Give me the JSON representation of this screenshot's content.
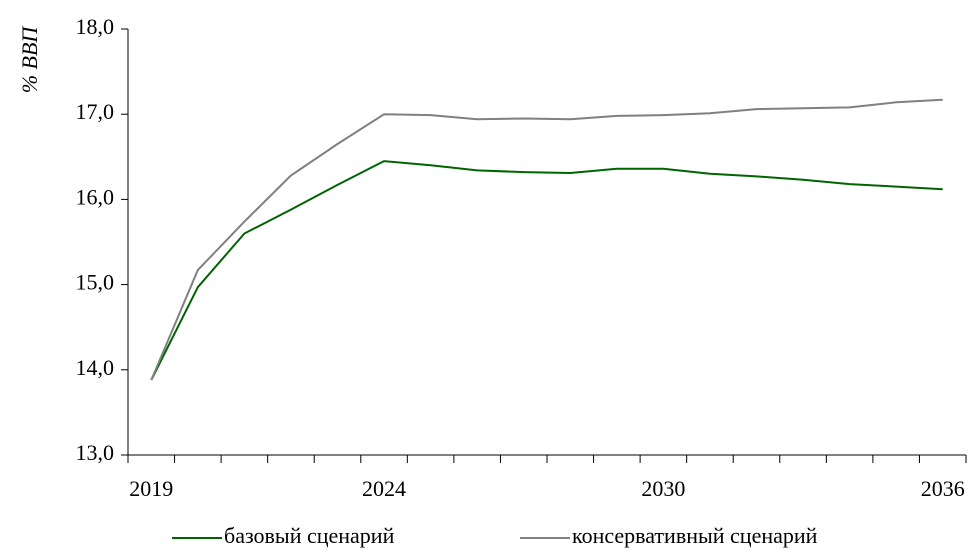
{
  "chart_data": {
    "type": "line",
    "ylabel": "% ВВП",
    "categories": [
      "2019",
      null,
      null,
      null,
      null,
      "2024",
      null,
      null,
      null,
      null,
      null,
      "2030",
      null,
      null,
      null,
      null,
      null,
      "2036"
    ],
    "series": [
      {
        "name": "базовый сценарий",
        "color": "#006400",
        "values": [
          13.88,
          14.97,
          15.6,
          15.88,
          16.17,
          16.45,
          16.4,
          16.34,
          16.32,
          16.31,
          16.36,
          16.36,
          16.3,
          16.27,
          16.23,
          16.18,
          16.15,
          16.12
        ]
      },
      {
        "name": "консервативный сценарий",
        "color": "#808080",
        "values": [
          13.88,
          15.17,
          15.74,
          16.28,
          16.65,
          17.0,
          16.99,
          16.94,
          16.95,
          16.94,
          16.98,
          16.99,
          17.01,
          17.06,
          17.07,
          17.08,
          17.14,
          17.17
        ]
      }
    ],
    "ylim": [
      13,
      18
    ],
    "yticks": [
      {
        "value": 13,
        "label": "13,0"
      },
      {
        "value": 14,
        "label": "14,0"
      },
      {
        "value": 15,
        "label": "15,0"
      },
      {
        "value": 16,
        "label": "16,0"
      },
      {
        "value": 17,
        "label": "17,0"
      },
      {
        "value": 18,
        "label": "18,0"
      }
    ],
    "legend": "bottom"
  }
}
